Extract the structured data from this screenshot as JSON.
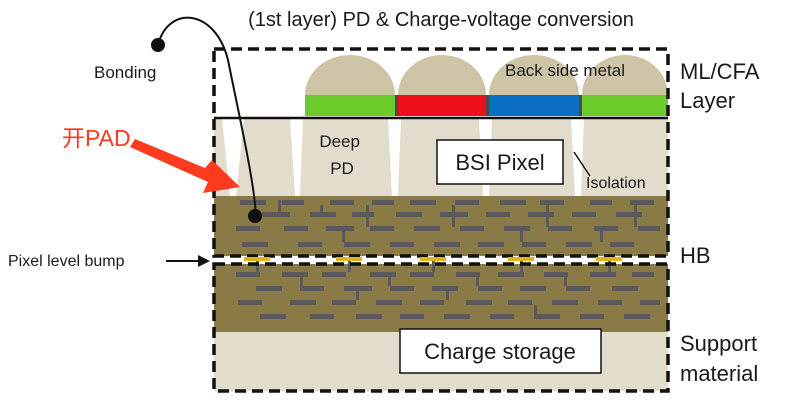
{
  "title": "(1st layer) PD & Charge-voltage conversion",
  "labels": {
    "bonding": "Bonding",
    "open_pad": "开PAD",
    "pixel_level_bump": "Pixel level bump",
    "back_side_metal": "Back side metal",
    "deep_pd": "Deep\nPD",
    "bsi_pixel": "BSI Pixel",
    "isolation": "Isolation",
    "charge_storage": "Charge storage",
    "ml_cfa_layer": "ML/CFA\nLayer",
    "hb": "HB",
    "support_material": "Support\nmaterial"
  },
  "colors": {
    "lens": "#cdc4a5",
    "green_filter": "#6ccb2a",
    "red_filter": "#ee0f1a",
    "blue_filter": "#0b6fc4",
    "silicon": "#e1dccb",
    "interconnect": "#8a7a45",
    "metal_bar": "#5a5a5a",
    "bump": "#e3b21a",
    "annotation": "#ff3b1f",
    "outline": "#111111"
  },
  "icons": {
    "annotation_arrow": "red-arrow-icon",
    "bump_arrow": "black-arrow-icon"
  }
}
